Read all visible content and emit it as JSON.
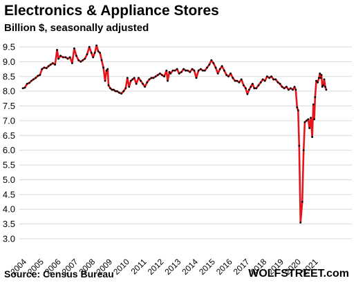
{
  "chart_data": {
    "type": "line",
    "title": "Electronics & Appliance Stores",
    "subtitle": "Billion $, seasonally adjusted",
    "xlabel": "",
    "ylabel": "",
    "ylim": [
      3.0,
      9.5
    ],
    "xlim": [
      2004.0,
      2021.75
    ],
    "grid": "horizontal",
    "line_color": "#e8141b",
    "marker_color": "#000000",
    "y_ticks": [
      "9.5",
      "9.0",
      "8.5",
      "8.0",
      "7.5",
      "7.0",
      "6.5",
      "6.0",
      "5.5",
      "5.0",
      "4.5",
      "4.0",
      "3.5",
      "3.0"
    ],
    "x_ticks": [
      "2004",
      "2005",
      "2006",
      "2007",
      "2008",
      "2009",
      "2010",
      "2011",
      "2012",
      "2013",
      "2014",
      "2015",
      "2016",
      "2017",
      "2018",
      "2019",
      "2020",
      "2021"
    ],
    "series": [
      {
        "values": [
          [
            2004.0,
            8.1
          ],
          [
            2004.12,
            8.12
          ],
          [
            2004.25,
            8.25
          ],
          [
            2004.38,
            8.28
          ],
          [
            2004.5,
            8.35
          ],
          [
            2004.62,
            8.4
          ],
          [
            2004.75,
            8.45
          ],
          [
            2004.88,
            8.52
          ],
          [
            2005.0,
            8.55
          ],
          [
            2005.12,
            8.75
          ],
          [
            2005.25,
            8.8
          ],
          [
            2005.38,
            8.78
          ],
          [
            2005.5,
            8.85
          ],
          [
            2005.62,
            8.9
          ],
          [
            2005.75,
            8.95
          ],
          [
            2005.88,
            8.9
          ],
          [
            2006.0,
            9.4
          ],
          [
            2006.08,
            9.1
          ],
          [
            2006.2,
            9.2
          ],
          [
            2006.35,
            9.15
          ],
          [
            2006.5,
            9.15
          ],
          [
            2006.62,
            9.1
          ],
          [
            2006.75,
            9.15
          ],
          [
            2006.88,
            8.95
          ],
          [
            2007.0,
            9.45
          ],
          [
            2007.12,
            9.2
          ],
          [
            2007.25,
            9.05
          ],
          [
            2007.38,
            9.0
          ],
          [
            2007.5,
            9.05
          ],
          [
            2007.62,
            9.1
          ],
          [
            2007.75,
            9.25
          ],
          [
            2007.88,
            9.5
          ],
          [
            2008.0,
            9.3
          ],
          [
            2008.1,
            9.15
          ],
          [
            2008.2,
            9.3
          ],
          [
            2008.3,
            9.55
          ],
          [
            2008.4,
            9.35
          ],
          [
            2008.5,
            9.3
          ],
          [
            2008.6,
            9.05
          ],
          [
            2008.7,
            8.8
          ],
          [
            2008.8,
            8.35
          ],
          [
            2008.88,
            8.7
          ],
          [
            2008.95,
            8.75
          ],
          [
            2009.0,
            8.2
          ],
          [
            2009.1,
            8.1
          ],
          [
            2009.2,
            8.05
          ],
          [
            2009.3,
            8.05
          ],
          [
            2009.4,
            8.0
          ],
          [
            2009.5,
            8.0
          ],
          [
            2009.62,
            7.95
          ],
          [
            2009.75,
            7.92
          ],
          [
            2009.88,
            8.0
          ],
          [
            2010.0,
            8.1
          ],
          [
            2010.1,
            8.45
          ],
          [
            2010.2,
            8.15
          ],
          [
            2010.3,
            8.35
          ],
          [
            2010.4,
            8.4
          ],
          [
            2010.5,
            8.45
          ],
          [
            2010.62,
            8.25
          ],
          [
            2010.75,
            8.45
          ],
          [
            2010.88,
            8.35
          ],
          [
            2011.0,
            8.25
          ],
          [
            2011.12,
            8.15
          ],
          [
            2011.25,
            8.3
          ],
          [
            2011.38,
            8.4
          ],
          [
            2011.5,
            8.45
          ],
          [
            2011.62,
            8.45
          ],
          [
            2011.75,
            8.5
          ],
          [
            2011.88,
            8.55
          ],
          [
            2012.0,
            8.6
          ],
          [
            2012.12,
            8.55
          ],
          [
            2012.25,
            8.5
          ],
          [
            2012.38,
            8.7
          ],
          [
            2012.45,
            8.35
          ],
          [
            2012.55,
            8.65
          ],
          [
            2012.62,
            8.6
          ],
          [
            2012.75,
            8.7
          ],
          [
            2012.88,
            8.7
          ],
          [
            2013.0,
            8.75
          ],
          [
            2013.12,
            8.6
          ],
          [
            2013.25,
            8.65
          ],
          [
            2013.38,
            8.75
          ],
          [
            2013.5,
            8.7
          ],
          [
            2013.62,
            8.7
          ],
          [
            2013.75,
            8.65
          ],
          [
            2013.88,
            8.75
          ],
          [
            2014.0,
            8.7
          ],
          [
            2014.12,
            8.45
          ],
          [
            2014.25,
            8.7
          ],
          [
            2014.38,
            8.75
          ],
          [
            2014.5,
            8.7
          ],
          [
            2014.62,
            8.7
          ],
          [
            2014.75,
            8.8
          ],
          [
            2014.88,
            8.9
          ],
          [
            2015.0,
            9.05
          ],
          [
            2015.12,
            8.95
          ],
          [
            2015.25,
            8.8
          ],
          [
            2015.38,
            8.6
          ],
          [
            2015.5,
            8.75
          ],
          [
            2015.62,
            8.85
          ],
          [
            2015.75,
            8.7
          ],
          [
            2015.88,
            8.55
          ],
          [
            2016.0,
            8.5
          ],
          [
            2016.12,
            8.6
          ],
          [
            2016.25,
            8.45
          ],
          [
            2016.38,
            8.35
          ],
          [
            2016.5,
            8.35
          ],
          [
            2016.62,
            8.3
          ],
          [
            2016.75,
            8.4
          ],
          [
            2016.88,
            8.2
          ],
          [
            2017.0,
            8.1
          ],
          [
            2017.1,
            7.9
          ],
          [
            2017.2,
            8.05
          ],
          [
            2017.3,
            8.15
          ],
          [
            2017.4,
            8.25
          ],
          [
            2017.5,
            8.1
          ],
          [
            2017.62,
            8.1
          ],
          [
            2017.75,
            8.2
          ],
          [
            2017.88,
            8.3
          ],
          [
            2018.0,
            8.4
          ],
          [
            2018.12,
            8.35
          ],
          [
            2018.25,
            8.5
          ],
          [
            2018.38,
            8.45
          ],
          [
            2018.5,
            8.5
          ],
          [
            2018.62,
            8.4
          ],
          [
            2018.75,
            8.4
          ],
          [
            2018.88,
            8.3
          ],
          [
            2019.0,
            8.25
          ],
          [
            2019.12,
            8.15
          ],
          [
            2019.25,
            8.1
          ],
          [
            2019.38,
            8.15
          ],
          [
            2019.5,
            8.05
          ],
          [
            2019.62,
            8.1
          ],
          [
            2019.75,
            8.05
          ],
          [
            2019.85,
            8.15
          ],
          [
            2019.92,
            8.05
          ],
          [
            2020.0,
            7.45
          ],
          [
            2020.06,
            7.35
          ],
          [
            2020.12,
            6.15
          ],
          [
            2020.2,
            3.55
          ],
          [
            2020.3,
            4.25
          ],
          [
            2020.38,
            6.0
          ],
          [
            2020.45,
            6.95
          ],
          [
            2020.55,
            7.0
          ],
          [
            2020.65,
            7.05
          ],
          [
            2020.72,
            6.75
          ],
          [
            2020.8,
            7.1
          ],
          [
            2020.88,
            6.45
          ],
          [
            2020.95,
            7.55
          ],
          [
            2021.0,
            7.05
          ],
          [
            2021.05,
            7.8
          ],
          [
            2021.12,
            8.35
          ],
          [
            2021.2,
            8.3
          ],
          [
            2021.28,
            8.45
          ],
          [
            2021.33,
            8.6
          ],
          [
            2021.38,
            8.45
          ],
          [
            2021.42,
            8.55
          ],
          [
            2021.47,
            8.15
          ],
          [
            2021.52,
            8.2
          ],
          [
            2021.58,
            8.4
          ],
          [
            2021.64,
            8.15
          ],
          [
            2021.7,
            8.05
          ]
        ]
      }
    ]
  },
  "footer": {
    "source": "Source: Census Bureau",
    "credit": "WOLFSTREET.com"
  }
}
